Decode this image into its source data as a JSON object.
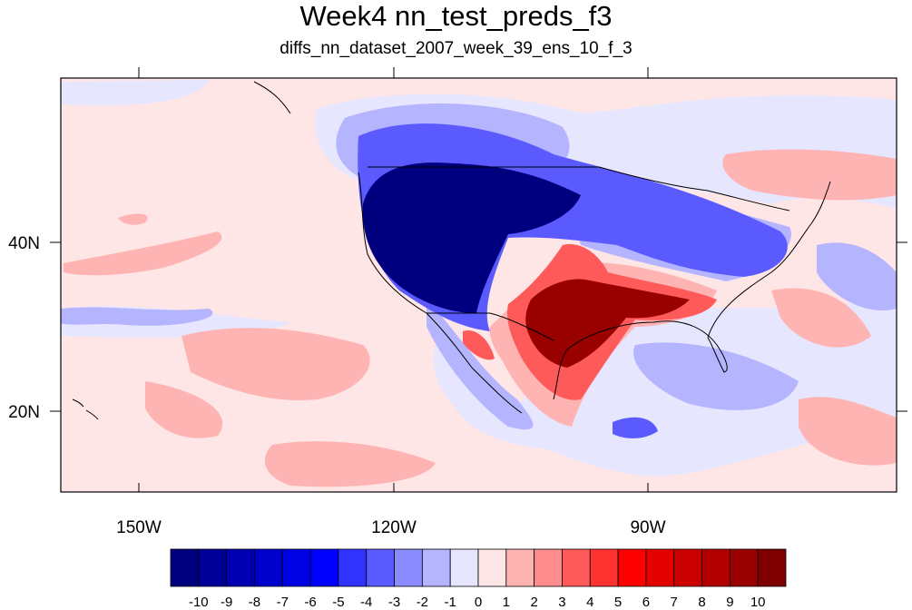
{
  "title": "Week4 nn_test_preds_f3",
  "subtitle": "diffs_nn_dataset_2007_week_39_ens_10_f_3",
  "axes": {
    "lon_labels": [
      "150W",
      "120W",
      "90W"
    ],
    "lat_labels": [
      "40N",
      "20N"
    ]
  },
  "colorbar": {
    "labels": [
      "-10",
      "-9",
      "-8",
      "-7",
      "-6",
      "-5",
      "-4",
      "-3",
      "-2",
      "-1",
      "0",
      "1",
      "2",
      "3",
      "4",
      "5",
      "6",
      "7",
      "8",
      "9",
      "10"
    ],
    "colors": [
      "#00007f",
      "#000099",
      "#0000b2",
      "#0000cc",
      "#0000e5",
      "#0000ff",
      "#3232ff",
      "#5a5aff",
      "#8c8cff",
      "#b4b4ff",
      "#e6e6ff",
      "#ffe6e6",
      "#ffb4b4",
      "#ff8c8c",
      "#ff5a5a",
      "#ff3232",
      "#ff0000",
      "#e50000",
      "#cc0000",
      "#b20000",
      "#990000",
      "#7f0000"
    ]
  },
  "palette": {
    "background": "#ffe6e6",
    "light_blue": "#e6e6ff",
    "pale_blue": "#b4b4ff",
    "mid_blue": "#5a5aff",
    "deep_blue": "#00007f",
    "pale_red": "#ffb4b4",
    "mid_red": "#ff5a5a",
    "deep_red": "#990000"
  }
}
